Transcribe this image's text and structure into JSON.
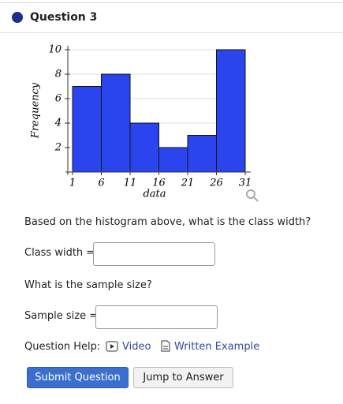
{
  "header": {
    "title": "Question 3"
  },
  "chart_data": {
    "type": "histogram",
    "bins": [
      1,
      6,
      11,
      16,
      21,
      26,
      31
    ],
    "values": [
      7,
      8,
      4,
      2,
      3,
      10
    ],
    "color": "#2b45ee",
    "xlim": [
      1,
      31
    ],
    "ylim": [
      0,
      10
    ],
    "xticks": [
      1,
      6,
      11,
      16,
      21,
      26,
      31
    ],
    "yticks": [
      2,
      4,
      6,
      8,
      10
    ],
    "x_label": "data",
    "y_label": "Frequency",
    "grid": true
  },
  "questions": [
    {
      "prompt": "Based on the histogram above, what is the class width?",
      "field_label": "Class width ="
    },
    {
      "prompt": "What is the sample size?",
      "field_label": "Sample size ="
    }
  ],
  "help": {
    "label": "Question Help:",
    "links": [
      "Video",
      "Written Example"
    ]
  },
  "buttons": [
    "Submit Question",
    "Jump to Answer"
  ]
}
